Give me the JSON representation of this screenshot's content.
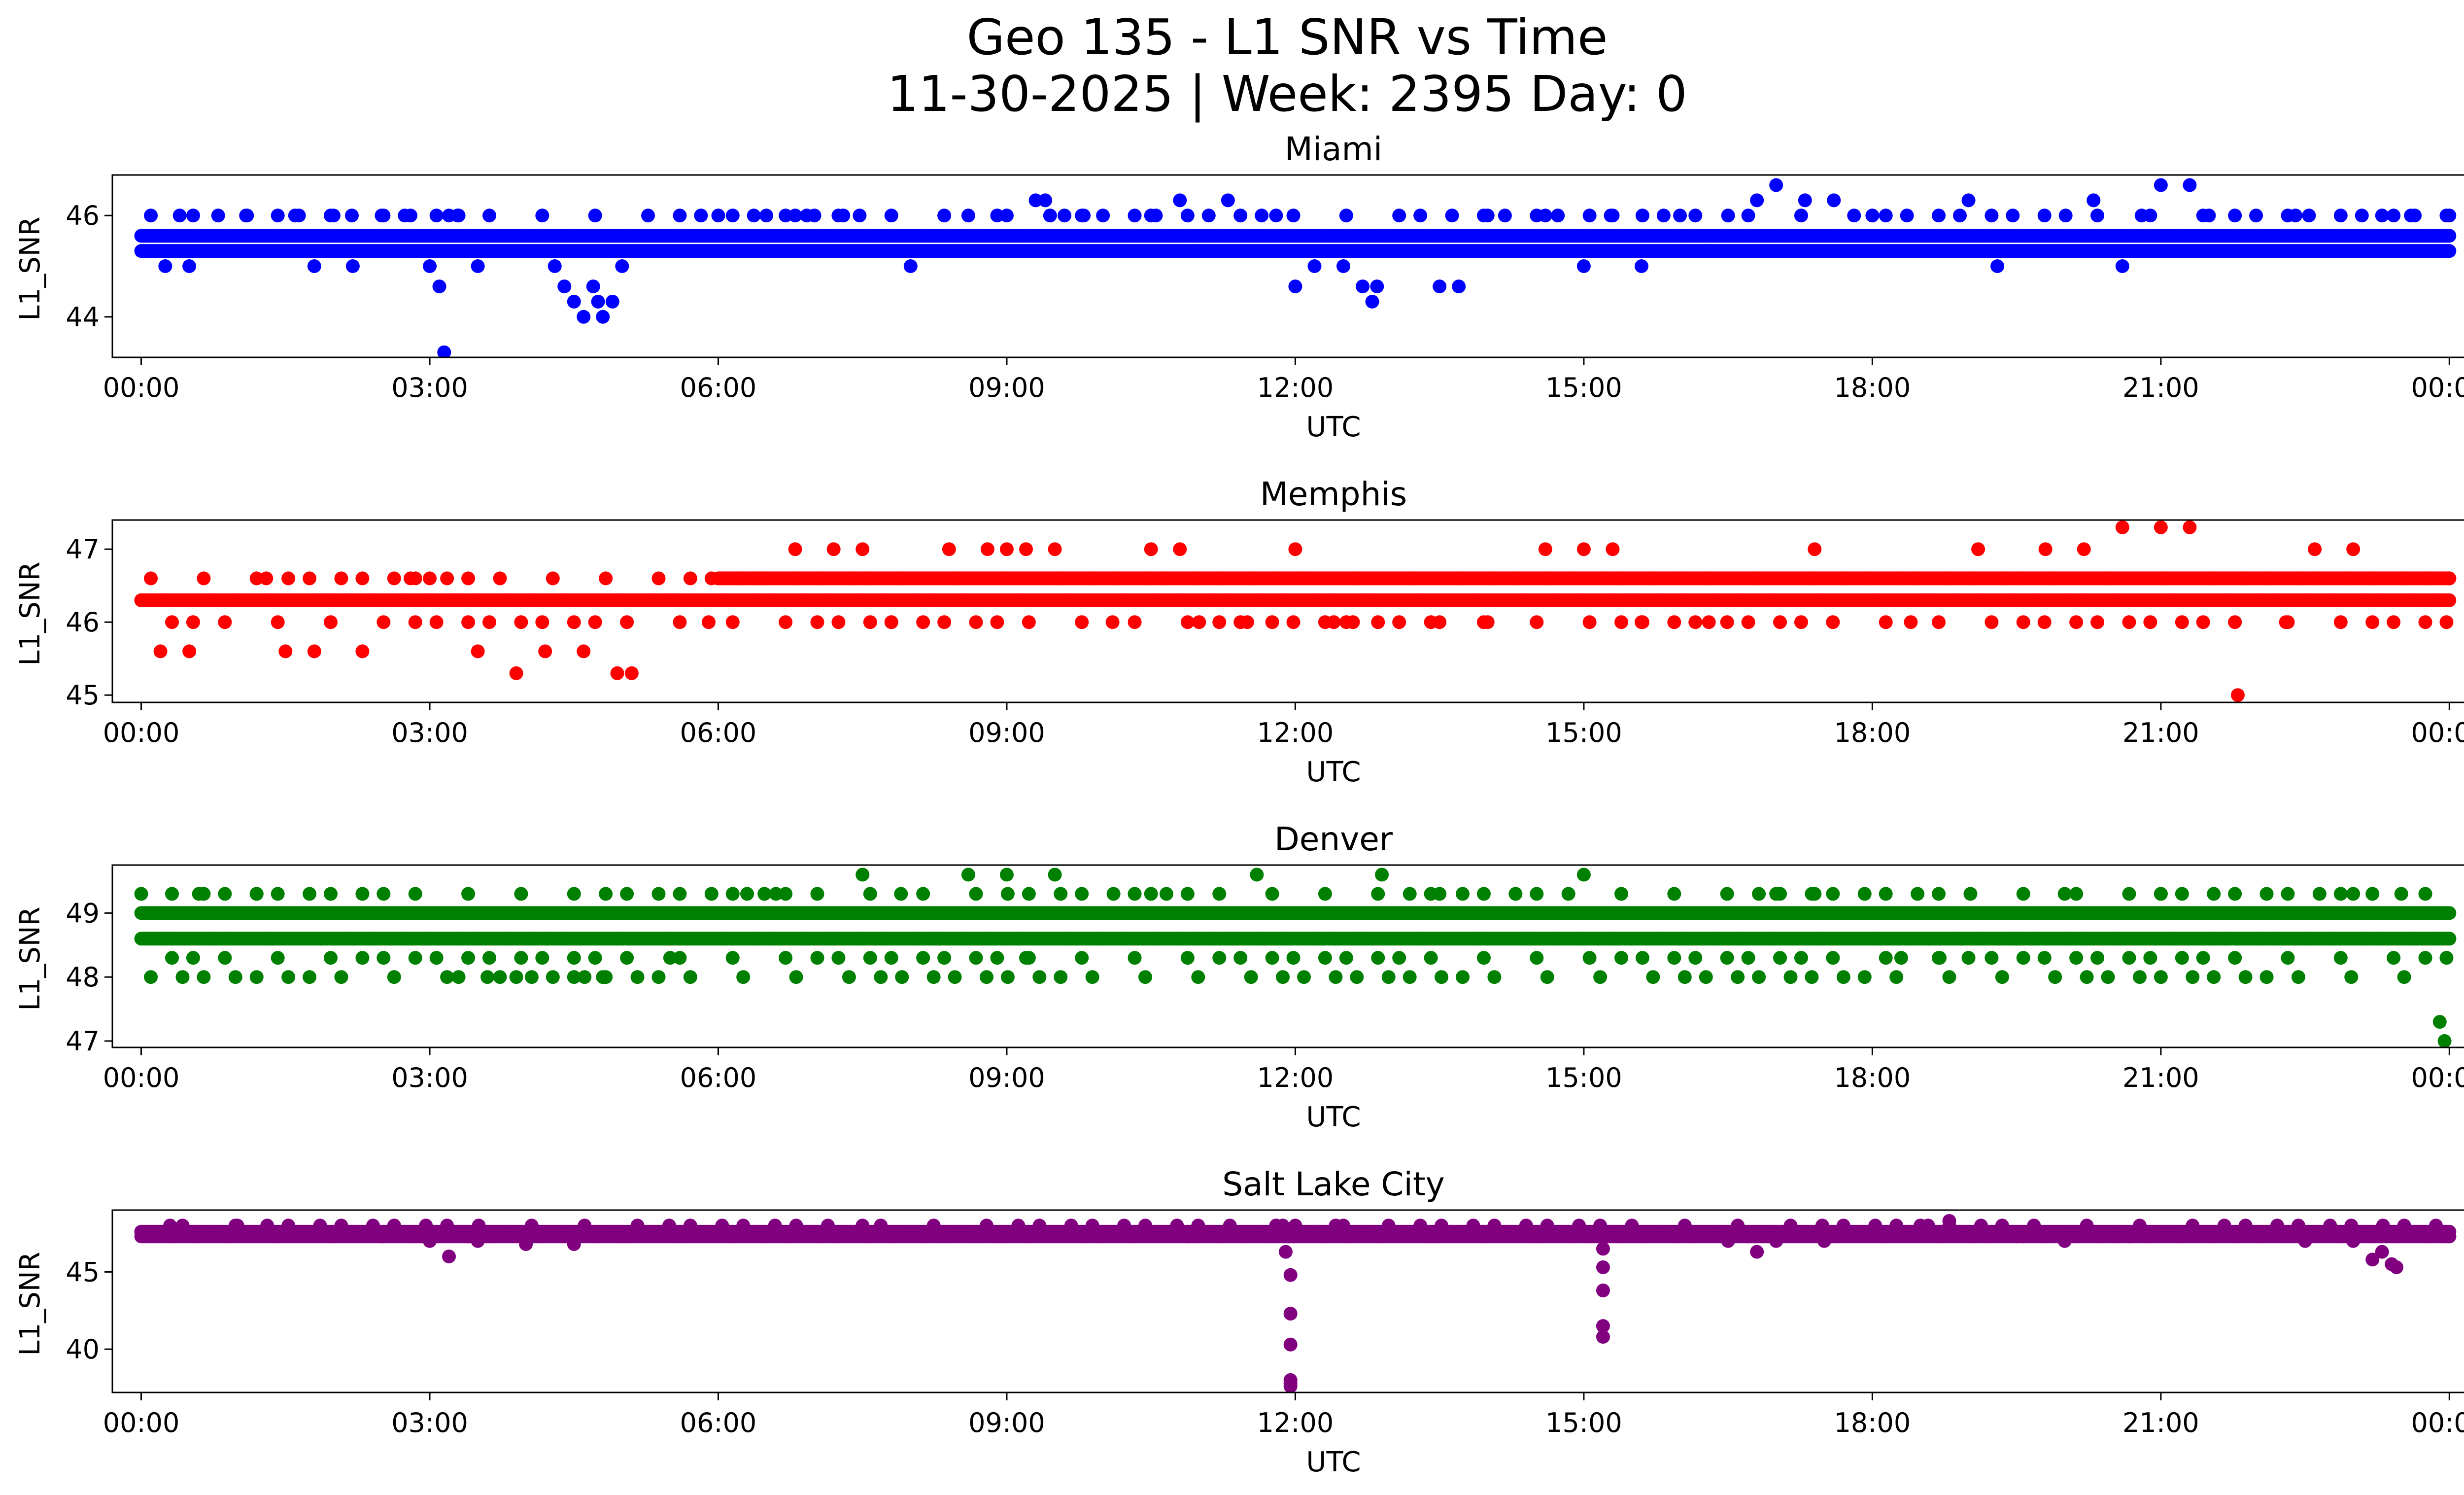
{
  "figure": {
    "title_line1": "Geo 135 - L1 SNR vs Time",
    "title_line2": "11-30-2025 | Week: 2395 Day: 0"
  },
  "chart_data": [
    {
      "type": "scatter",
      "title": "Miami",
      "xlabel": "UTC",
      "ylabel": "L1_SNR",
      "color": "#0000ff",
      "xlim": [
        -0.3,
        25.1
      ],
      "ylim": [
        43.2,
        46.8
      ],
      "xticks": [
        0,
        3,
        6,
        9,
        12,
        15,
        18,
        21,
        24
      ],
      "xticklabels": [
        "00:00",
        "03:00",
        "06:00",
        "09:00",
        "12:00",
        "15:00",
        "18:00",
        "21:00",
        "00:00"
      ],
      "yticks": [
        44,
        46
      ],
      "yticklabels": [
        "44",
        "46"
      ],
      "levels": [
        45.3,
        45.6,
        46.0
      ],
      "series": [
        {
          "name": "band-low",
          "x": [
            0.0,
            24.0
          ],
          "y": [
            45.3,
            45.3
          ]
        },
        {
          "name": "band-mid",
          "x": [
            0.0,
            24.0
          ],
          "y": [
            45.6,
            45.6
          ]
        }
      ],
      "points": {
        "x": [
          0.1,
          0.2,
          0.25,
          0.4,
          0.5,
          0.8,
          1.1,
          1.6,
          1.8,
          2.0,
          2.2,
          2.5,
          2.8,
          3.0,
          3.1,
          3.15,
          3.2,
          3.3,
          3.5,
          4.3,
          4.4,
          4.5,
          4.6,
          4.7,
          4.75,
          4.8,
          4.9,
          5.0,
          5.2,
          5.5,
          6.0,
          6.2,
          6.5,
          6.8,
          7.0,
          7.3,
          8.0,
          8.6,
          9.0,
          9.3,
          9.4,
          9.6,
          9.8,
          10.2,
          10.5,
          10.8,
          11.0,
          11.3,
          11.5,
          11.8,
          12.0,
          12.2,
          12.5,
          12.7,
          12.8,
          12.85,
          13.0,
          13.3,
          13.5,
          13.7,
          14.0,
          14.3,
          14.6,
          15.0,
          15.3,
          15.6,
          16.0,
          16.3,
          16.5,
          16.8,
          17.0,
          17.3,
          17.6,
          18.0,
          18.5,
          19.0,
          19.3,
          19.6,
          20.0,
          20.3,
          20.6,
          20.8,
          21.0,
          21.3,
          21.5,
          22.0,
          22.4,
          22.8,
          23.3,
          23.6,
          24.0
        ],
        "y": [
          46.0,
          45.3,
          45.0,
          46.0,
          45.0,
          46.0,
          46.0,
          46.0,
          45.0,
          46.0,
          45.0,
          46.0,
          46.0,
          45.0,
          44.6,
          43.3,
          46.0,
          46.0,
          45.0,
          45.0,
          44.6,
          44.3,
          44.0,
          44.6,
          44.3,
          44.0,
          44.3,
          45.0,
          45.3,
          45.3,
          46.0,
          45.6,
          46.0,
          46.0,
          46.0,
          46.0,
          45.0,
          46.0,
          46.0,
          46.3,
          46.3,
          46.0,
          46.0,
          45.3,
          46.0,
          46.3,
          45.3,
          46.3,
          45.6,
          46.0,
          44.6,
          45.0,
          45.0,
          44.6,
          44.3,
          44.6,
          45.6,
          46.0,
          44.6,
          44.6,
          46.0,
          45.3,
          46.0,
          45.0,
          46.0,
          45.0,
          46.0,
          45.3,
          46.0,
          46.3,
          46.6,
          46.3,
          46.3,
          46.0,
          45.3,
          46.3,
          45.0,
          45.3,
          45.6,
          46.3,
          45.0,
          46.0,
          46.6,
          46.6,
          46.0,
          45.6,
          46.0,
          45.3,
          46.0,
          46.0,
          46.0
        ]
      }
    },
    {
      "type": "scatter",
      "title": "Memphis",
      "xlabel": "UTC",
      "ylabel": "L1_SNR",
      "color": "#ff0000",
      "xlim": [
        -0.3,
        25.1
      ],
      "ylim": [
        44.9,
        47.4
      ],
      "xticks": [
        0,
        3,
        6,
        9,
        12,
        15,
        18,
        21,
        24
      ],
      "xticklabels": [
        "00:00",
        "03:00",
        "06:00",
        "09:00",
        "12:00",
        "15:00",
        "18:00",
        "21:00",
        "00:00"
      ],
      "yticks": [
        45,
        46,
        47
      ],
      "yticklabels": [
        "45",
        "46",
        "47"
      ],
      "levels": [
        46.0,
        46.3,
        46.6
      ],
      "series": [
        {
          "name": "band-low",
          "x": [
            0.0,
            24.0
          ],
          "y": [
            46.3,
            46.3
          ]
        },
        {
          "name": "band-mid",
          "x": [
            6.0,
            24.0
          ],
          "y": [
            46.6,
            46.6
          ]
        }
      ],
      "points": {
        "x": [
          0.0,
          0.2,
          0.5,
          1.0,
          1.3,
          1.5,
          1.8,
          2.0,
          2.3,
          2.8,
          3.0,
          3.2,
          3.5,
          3.9,
          4.2,
          4.6,
          4.95,
          5.1,
          5.3,
          5.6,
          5.9,
          6.0,
          6.4,
          6.8,
          7.2,
          7.5,
          7.8,
          8.4,
          8.8,
          9.0,
          9.2,
          9.5,
          10.1,
          10.5,
          10.8,
          11.0,
          11.5,
          12.0,
          12.4,
          12.6,
          12.8,
          13.5,
          14.0,
          14.6,
          15.0,
          15.3,
          15.6,
          16.0,
          16.3,
          17.4,
          18.4,
          19.1,
          19.8,
          20.2,
          20.6,
          21.0,
          21.3,
          21.8,
          22.0,
          22.3,
          22.6,
          23.0,
          24.0
        ],
        "y": [
          46.3,
          45.6,
          45.6,
          46.3,
          46.6,
          45.6,
          45.6,
          46.3,
          45.6,
          46.6,
          46.6,
          46.3,
          45.6,
          45.3,
          45.6,
          45.6,
          45.3,
          45.3,
          46.3,
          46.3,
          46.0,
          46.6,
          46.6,
          47.0,
          47.0,
          47.0,
          46.0,
          47.0,
          47.0,
          47.0,
          47.0,
          47.0,
          46.0,
          47.0,
          47.0,
          46.0,
          46.0,
          47.0,
          46.0,
          46.0,
          46.3,
          46.0,
          46.0,
          47.0,
          47.0,
          47.0,
          46.0,
          46.6,
          46.0,
          47.0,
          46.0,
          47.0,
          47.0,
          47.0,
          47.3,
          47.3,
          47.3,
          45.0,
          46.3,
          46.0,
          47.0,
          47.0,
          46.6
        ]
      }
    },
    {
      "type": "scatter",
      "title": "Denver",
      "xlabel": "UTC",
      "ylabel": "L1_SNR",
      "color": "#008000",
      "xlim": [
        -0.3,
        25.1
      ],
      "ylim": [
        46.9,
        49.75
      ],
      "xticks": [
        0,
        3,
        6,
        9,
        12,
        15,
        18,
        21,
        24
      ],
      "xticklabels": [
        "00:00",
        "03:00",
        "06:00",
        "09:00",
        "12:00",
        "15:00",
        "18:00",
        "21:00",
        "00:00"
      ],
      "yticks": [
        47,
        48,
        49
      ],
      "yticklabels": [
        "47",
        "48",
        "49"
      ],
      "levels": [
        48.0,
        48.3,
        48.6,
        49.0,
        49.3
      ],
      "series": [
        {
          "name": "band-high",
          "x": [
            0.0,
            24.0
          ],
          "y": [
            49.0,
            49.0
          ]
        },
        {
          "name": "band-low",
          "x": [
            0.0,
            24.0
          ],
          "y": [
            48.6,
            48.6
          ]
        }
      ],
      "points": {
        "x": [
          0.0,
          0.3,
          0.6,
          0.9,
          1.2,
          1.5,
          2.0,
          2.3,
          2.6,
          3.0,
          3.3,
          3.6,
          3.9,
          4.2,
          4.5,
          4.8,
          5.0,
          5.5,
          6.0,
          6.3,
          6.6,
          6.9,
          7.2,
          7.5,
          7.9,
          8.3,
          8.6,
          8.8,
          9.0,
          9.2,
          9.5,
          10.0,
          10.5,
          11.0,
          11.4,
          11.6,
          12.2,
          12.6,
          12.9,
          13.5,
          14.0,
          14.5,
          15.0,
          15.5,
          16.0,
          16.5,
          17.0,
          17.4,
          18.0,
          18.3,
          18.7,
          19.0,
          19.5,
          20.0,
          20.5,
          21.0,
          21.5,
          22.0,
          22.5,
          23.0,
          23.5,
          23.9,
          23.95,
          24.0
        ],
        "y": [
          49.3,
          48.6,
          49.3,
          48.6,
          49.3,
          49.0,
          49.0,
          48.3,
          49.0,
          48.6,
          48.0,
          48.0,
          48.0,
          48.6,
          48.0,
          48.0,
          48.6,
          48.3,
          49.0,
          49.3,
          49.3,
          48.6,
          48.6,
          49.6,
          49.3,
          48.6,
          49.6,
          48.6,
          49.6,
          48.3,
          49.6,
          48.6,
          49.3,
          48.6,
          48.6,
          49.6,
          48.6,
          48.6,
          49.6,
          49.3,
          48.6,
          48.6,
          49.6,
          49.0,
          48.6,
          48.6,
          49.3,
          49.3,
          48.6,
          48.3,
          48.3,
          48.3,
          48.6,
          49.3,
          48.6,
          49.3,
          48.6,
          48.6,
          48.6,
          49.3,
          49.3,
          47.3,
          47.0,
          48.6
        ]
      }
    },
    {
      "type": "scatter",
      "title": "Salt Lake City",
      "xlabel": "UTC",
      "ylabel": "L1_SNR",
      "color": "#800080",
      "xlim": [
        -0.3,
        25.1
      ],
      "ylim": [
        37.2,
        49.0
      ],
      "xticks": [
        0,
        3,
        6,
        9,
        12,
        15,
        18,
        21,
        24
      ],
      "xticklabels": [
        "00:00",
        "03:00",
        "06:00",
        "09:00",
        "12:00",
        "15:00",
        "18:00",
        "21:00",
        "00:00"
      ],
      "yticks": [
        40,
        45
      ],
      "yticklabels": [
        "40",
        "45"
      ],
      "levels": [
        47.3,
        47.6,
        48.0
      ],
      "series": [
        {
          "name": "band-main",
          "x": [
            0.0,
            24.0
          ],
          "y": [
            47.3,
            47.3
          ]
        },
        {
          "name": "band-upper",
          "x": [
            0.0,
            24.0
          ],
          "y": [
            47.6,
            47.6
          ]
        }
      ],
      "points": {
        "x": [
          0.0,
          0.3,
          0.6,
          1.0,
          1.5,
          2.0,
          2.5,
          3.0,
          3.2,
          3.5,
          4.0,
          4.5,
          5.0,
          5.5,
          6.0,
          6.5,
          7.0,
          7.5,
          8.0,
          8.5,
          9.0,
          10.0,
          11.0,
          11.8,
          11.9,
          11.95,
          11.95,
          11.95,
          11.95,
          11.95,
          11.95,
          12.0,
          12.2,
          12.5,
          13.0,
          13.5,
          14.0,
          14.5,
          15.0,
          15.2,
          15.2,
          15.2,
          15.2,
          15.2,
          15.25,
          15.5,
          16.0,
          16.5,
          16.8,
          17.0,
          17.5,
          18.0,
          18.5,
          18.8,
          19.0,
          19.5,
          20.0,
          20.5,
          21.0,
          21.5,
          22.0,
          22.5,
          23.0,
          23.2,
          23.3,
          23.4,
          23.45,
          24.0
        ],
        "y": [
          47.6,
          48.0,
          47.6,
          48.0,
          47.6,
          47.3,
          47.3,
          47.0,
          46.0,
          47.0,
          46.8,
          46.8,
          47.3,
          47.6,
          47.6,
          47.3,
          47.6,
          48.0,
          47.6,
          47.6,
          47.3,
          47.3,
          47.3,
          48.0,
          46.3,
          44.8,
          42.3,
          40.3,
          38.0,
          37.6,
          37.8,
          48.0,
          47.6,
          48.0,
          47.6,
          47.3,
          47.6,
          47.3,
          47.6,
          46.5,
          45.3,
          43.8,
          41.5,
          40.8,
          47.6,
          47.3,
          47.6,
          47.0,
          46.3,
          47.0,
          47.0,
          47.6,
          48.0,
          48.3,
          47.6,
          47.3,
          47.0,
          47.3,
          47.6,
          47.3,
          47.3,
          47.0,
          47.0,
          45.8,
          46.3,
          45.5,
          45.3,
          47.3
        ]
      }
    }
  ]
}
